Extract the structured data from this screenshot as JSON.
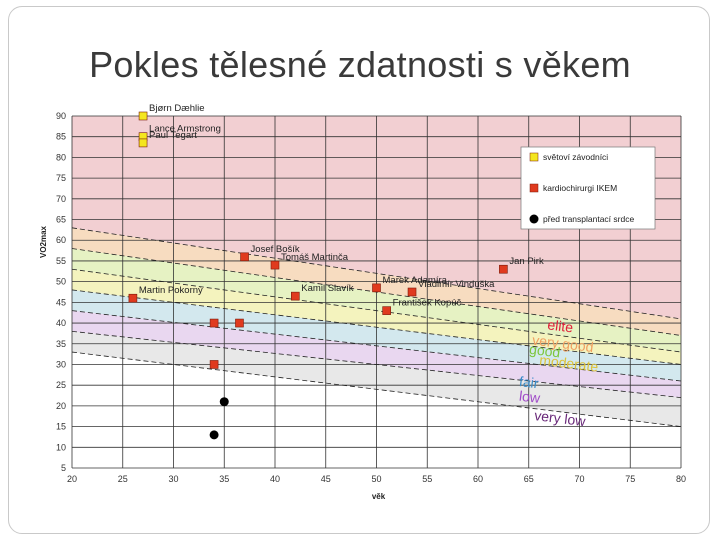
{
  "slide": {
    "title": "Pokles tělesné zdatnosti s věkem"
  },
  "chart_data": {
    "type": "scatter",
    "title": "",
    "xlabel": "věk",
    "ylabel": "VO2max",
    "xlim": [
      20,
      80
    ],
    "ylim": [
      5,
      90
    ],
    "xticks": [
      20,
      25,
      30,
      35,
      40,
      45,
      50,
      55,
      60,
      65,
      70,
      75,
      80
    ],
    "yticks": [
      5,
      10,
      15,
      20,
      25,
      30,
      35,
      40,
      45,
      50,
      55,
      60,
      65,
      70,
      75,
      80,
      85,
      90
    ],
    "grid": true,
    "legend": {
      "placement": "top-right",
      "entries": [
        {
          "label": "světoví závodníci",
          "color": "#f4e61e",
          "marker": "square"
        },
        {
          "label": "kardiochirurgi IKEM",
          "color": "#e03a1e",
          "marker": "square"
        },
        {
          "label": "před transplantací srdce",
          "color": "#000000",
          "marker": "circle"
        }
      ]
    },
    "zones": [
      {
        "label": "elite",
        "color": "#f2cfd2",
        "label_color": "#e0203a",
        "label_at": [
          66.8,
          38.5
        ]
      },
      {
        "label": "very good",
        "color": "#f7dcc0",
        "label_color": "#f0a060",
        "label_at": [
          65.3,
          34.8
        ]
      },
      {
        "label": "good",
        "color": "#e6f2c3",
        "label_color": "#7dc63c",
        "label_at": [
          65.0,
          32.6
        ]
      },
      {
        "label": "moderate",
        "color": "#f4f3be",
        "label_color": "#dcc23a",
        "label_at": [
          66.0,
          30.0
        ]
      },
      {
        "label": "fair",
        "color": "#d3e8ee",
        "label_color": "#3a8cc8",
        "label_at": [
          64.0,
          24.8
        ]
      },
      {
        "label": "low",
        "color": "#e9d7f0",
        "label_color": "#a04ac8",
        "label_at": [
          64.0,
          21.3
        ]
      },
      {
        "label": "very low",
        "color": "#e8e8e8",
        "label_color": "#6a2a7a",
        "label_at": [
          65.5,
          16.6
        ]
      }
    ],
    "boundaries": [
      {
        "from": [
          20,
          63
        ],
        "to": [
          80,
          41
        ]
      },
      {
        "from": [
          20,
          58
        ],
        "to": [
          80,
          37
        ]
      },
      {
        "from": [
          20,
          53
        ],
        "to": [
          80,
          33
        ]
      },
      {
        "from": [
          20,
          48
        ],
        "to": [
          80,
          30
        ]
      },
      {
        "from": [
          20,
          43
        ],
        "to": [
          80,
          26
        ]
      },
      {
        "from": [
          20,
          38
        ],
        "to": [
          80,
          22
        ]
      },
      {
        "from": [
          20,
          33
        ],
        "to": [
          80,
          15
        ]
      }
    ],
    "series": [
      {
        "name": "světoví závodníci",
        "marker": "square",
        "color": "#f4e61e",
        "points": [
          {
            "x": 27,
            "y": 90,
            "label": "Bjørn Dæhlie"
          },
          {
            "x": 27,
            "y": 85,
            "label": "Lance Armstrong"
          },
          {
            "x": 27,
            "y": 83.5,
            "label": "Paul Tegart"
          }
        ]
      },
      {
        "name": "kardiochirurgi IKEM",
        "marker": "square",
        "color": "#e03a1e",
        "points": [
          {
            "x": 26,
            "y": 46,
            "label": "Martin Pokorný"
          },
          {
            "x": 37,
            "y": 56,
            "label": "Josef Bošík"
          },
          {
            "x": 40,
            "y": 54,
            "label": "Tomáš Martinča"
          },
          {
            "x": 42,
            "y": 46.5,
            "label": "Kamil Slavík"
          },
          {
            "x": 50,
            "y": 48.5,
            "label": "Marek Adamíra"
          },
          {
            "x": 53.5,
            "y": 47.5,
            "label": "Vladimír Vinduška"
          },
          {
            "x": 51,
            "y": 43,
            "label": "František Kopúč"
          },
          {
            "x": 62.5,
            "y": 53,
            "label": "Jan Pirk"
          },
          {
            "x": 34,
            "y": 40,
            "label": ""
          },
          {
            "x": 36.5,
            "y": 40,
            "label": ""
          },
          {
            "x": 34,
            "y": 30,
            "label": ""
          }
        ]
      },
      {
        "name": "před transplantací srdce",
        "marker": "circle",
        "color": "#000000",
        "points": [
          {
            "x": 35,
            "y": 21,
            "label": ""
          },
          {
            "x": 34,
            "y": 13,
            "label": ""
          }
        ]
      }
    ]
  }
}
